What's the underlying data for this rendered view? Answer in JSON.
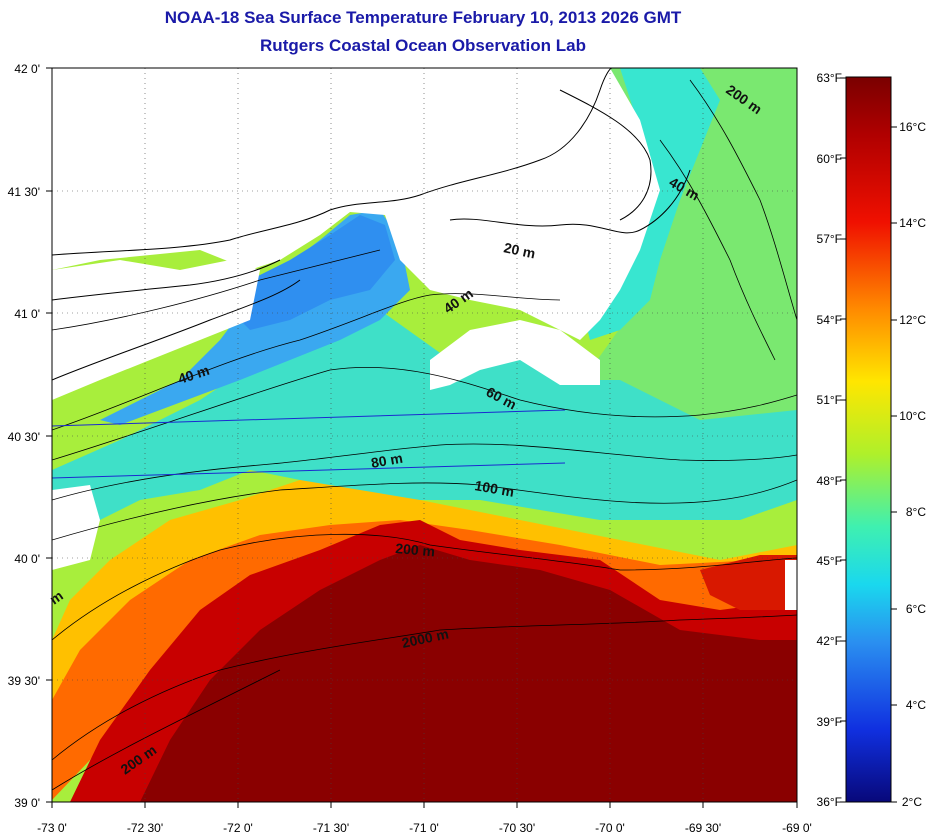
{
  "title": "NOAA-18 Sea Surface Temperature February 10, 2013 2026 GMT",
  "subtitle": "Rutgers Coastal Ocean Observation Lab",
  "map": {
    "lon_ticks": [
      "-73 0'",
      "-72 30'",
      "-72 0'",
      "-71 30'",
      "-71 0'",
      "-70 30'",
      "-70 0'",
      "-69 30'",
      "-69 0'"
    ],
    "lat_ticks": [
      "42 0'",
      "41 30'",
      "41 0'",
      "40 30'",
      "40 0'",
      "39 30'",
      "39 0'"
    ],
    "depth_labels": [
      "200 m",
      "40 m",
      "20 m",
      "40 m",
      "40 m",
      "60 m",
      "80 m",
      "100 m",
      "200 m",
      "2000 m",
      "200 m",
      "m"
    ]
  },
  "colorbar": {
    "fahrenheit": [
      "63°F",
      "60°F",
      "57°F",
      "54°F",
      "51°F",
      "48°F",
      "45°F",
      "42°F",
      "39°F",
      "36°F"
    ],
    "celsius": [
      "16°C",
      "14°C",
      "12°C",
      "10°C",
      "8°C",
      "6°C",
      "4°C",
      "2°C"
    ]
  },
  "colors": {
    "title": "#1a1aa8",
    "cold": "#0a0a90",
    "mid": "#9ff03a",
    "warm": "#7a0000",
    "land": "#ffffff"
  }
}
